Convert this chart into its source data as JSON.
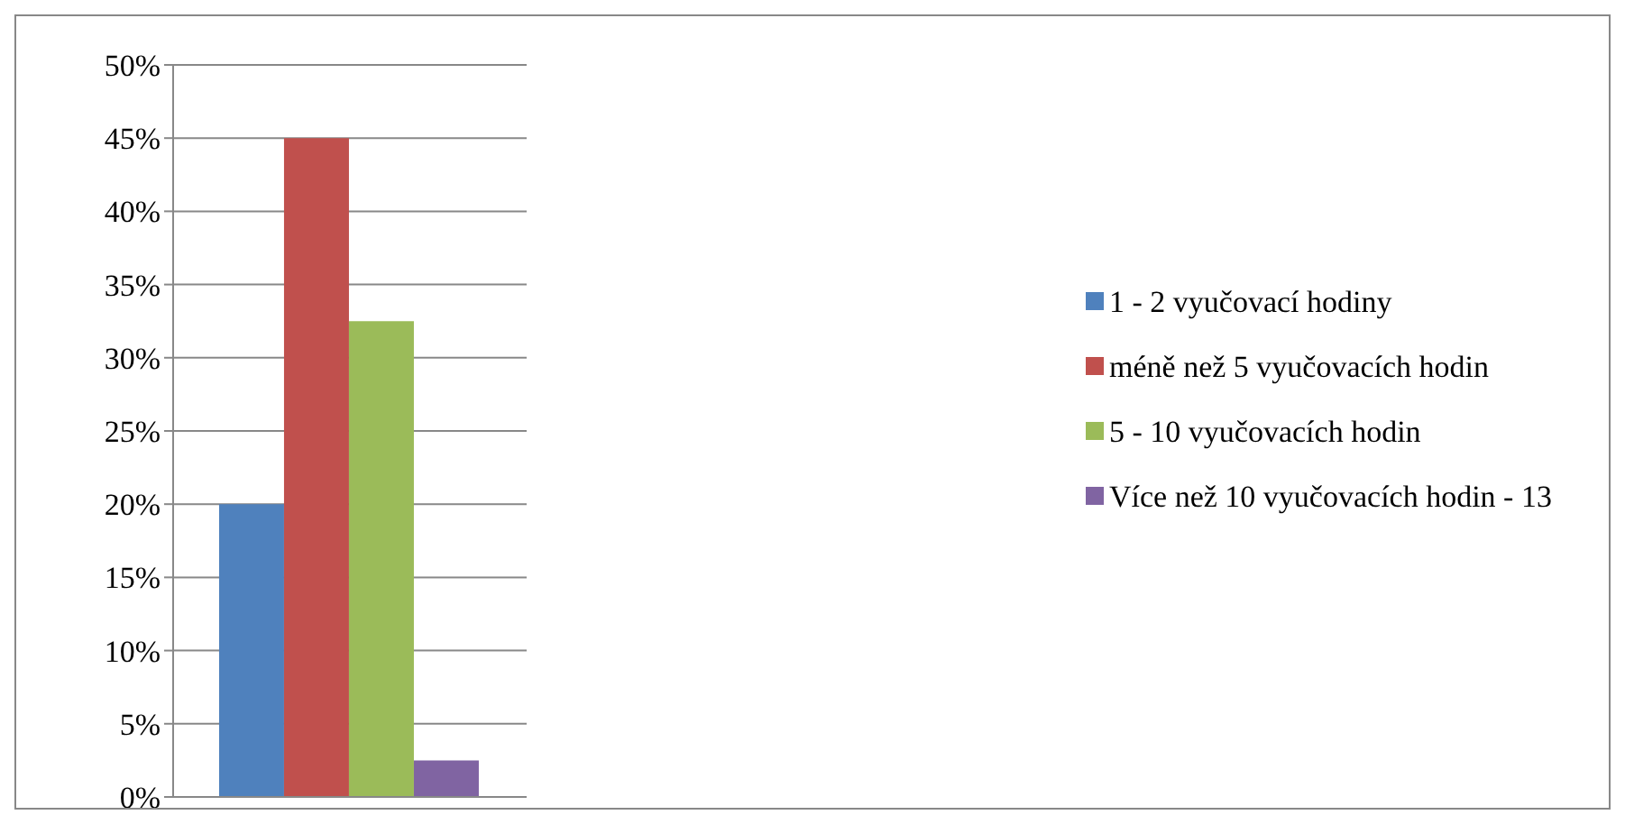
{
  "chart_data": {
    "type": "bar",
    "categories": [
      null
    ],
    "series": [
      {
        "name": "1 - 2 vyučovací hodiny",
        "color": "#4f81bd",
        "values": [
          20
        ]
      },
      {
        "name": "méně než 5 vyučovacích hodin",
        "color": "#c0504d",
        "values": [
          45
        ]
      },
      {
        "name": "5 - 10 vyučovacích hodin",
        "color": "#9bbb59",
        "values": [
          32.5
        ]
      },
      {
        "name": "Více než 10 vyučovacích hodin - 13",
        "color": "#8064a2",
        "values": [
          2.5
        ]
      }
    ],
    "ylim": [
      0,
      50
    ],
    "yticks": [
      {
        "value": 0,
        "label": "0%"
      },
      {
        "value": 5,
        "label": "5%"
      },
      {
        "value": 10,
        "label": "10%"
      },
      {
        "value": 15,
        "label": "15%"
      },
      {
        "value": 20,
        "label": "20%"
      },
      {
        "value": 25,
        "label": "25%"
      },
      {
        "value": 30,
        "label": "30%"
      },
      {
        "value": 35,
        "label": "35%"
      },
      {
        "value": 40,
        "label": "40%"
      },
      {
        "value": 45,
        "label": "45%"
      },
      {
        "value": 50,
        "label": "50%"
      }
    ],
    "grid": "y",
    "legend": "right"
  }
}
